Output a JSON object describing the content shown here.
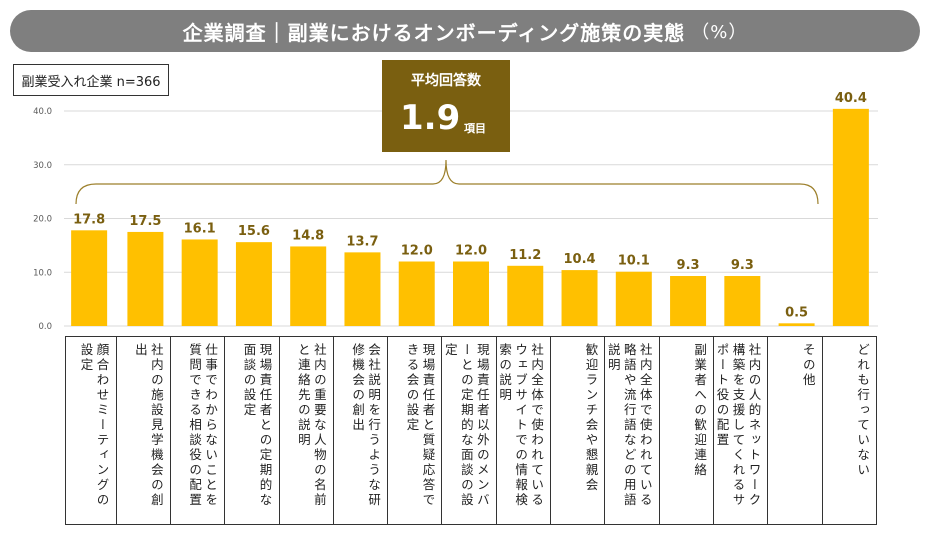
{
  "title": "企業調査｜副業におけるオンボーディング施策の実態",
  "title_unit": "（%）",
  "sample_label": "副業受入れ企業 n=366",
  "average": {
    "label": "平均回答数",
    "value": "1.9",
    "unit": "項目"
  },
  "colors": {
    "bar": "#ffc000",
    "label": "#7a5f10",
    "average_box": "#7a5f10",
    "title_bar": "#7f7f7f"
  },
  "chart_data": {
    "type": "bar",
    "categories": [
      "顔合わせミーティングの設定",
      "社内の施設見学機会の創出",
      "仕事でわからないことを質問できる相談役の配置",
      "現場責任者との定期的な面談の設定",
      "社内の重要な人物の名前と連絡先の説明",
      "会社説明を行うような研修機会の創出",
      "現場責任者と質疑応答できる会の設定",
      "現場責任者以外のメンバーとの定期的な面談の設定",
      "社内全体で使われているウェブサイトでの情報検索の説明",
      "歓迎ランチ会や懇親会",
      "社内全体で使われている略語や流行語などの用語説明",
      "副業者への歓迎連絡",
      "社内の人的ネットワーク構築を支援してくれるサポート役の配置",
      "その他",
      "どれも行っていない"
    ],
    "values": [
      17.8,
      17.5,
      16.1,
      15.6,
      14.8,
      13.7,
      12.0,
      12.0,
      11.2,
      10.4,
      10.1,
      9.3,
      9.3,
      0.5,
      40.4
    ],
    "value_labels": [
      "17.8",
      "17.5",
      "16.1",
      "15.6",
      "14.8",
      "13.7",
      "12.0",
      "12.0",
      "11.2",
      "10.4",
      "10.1",
      "9.3",
      "9.3",
      "0.5",
      "40.4"
    ],
    "y_ticks": [
      "0.0",
      "10.0",
      "20.0",
      "30.0",
      "40.0"
    ],
    "ylim": [
      0,
      40
    ],
    "grid": true,
    "xlabel": "",
    "ylabel": ""
  }
}
